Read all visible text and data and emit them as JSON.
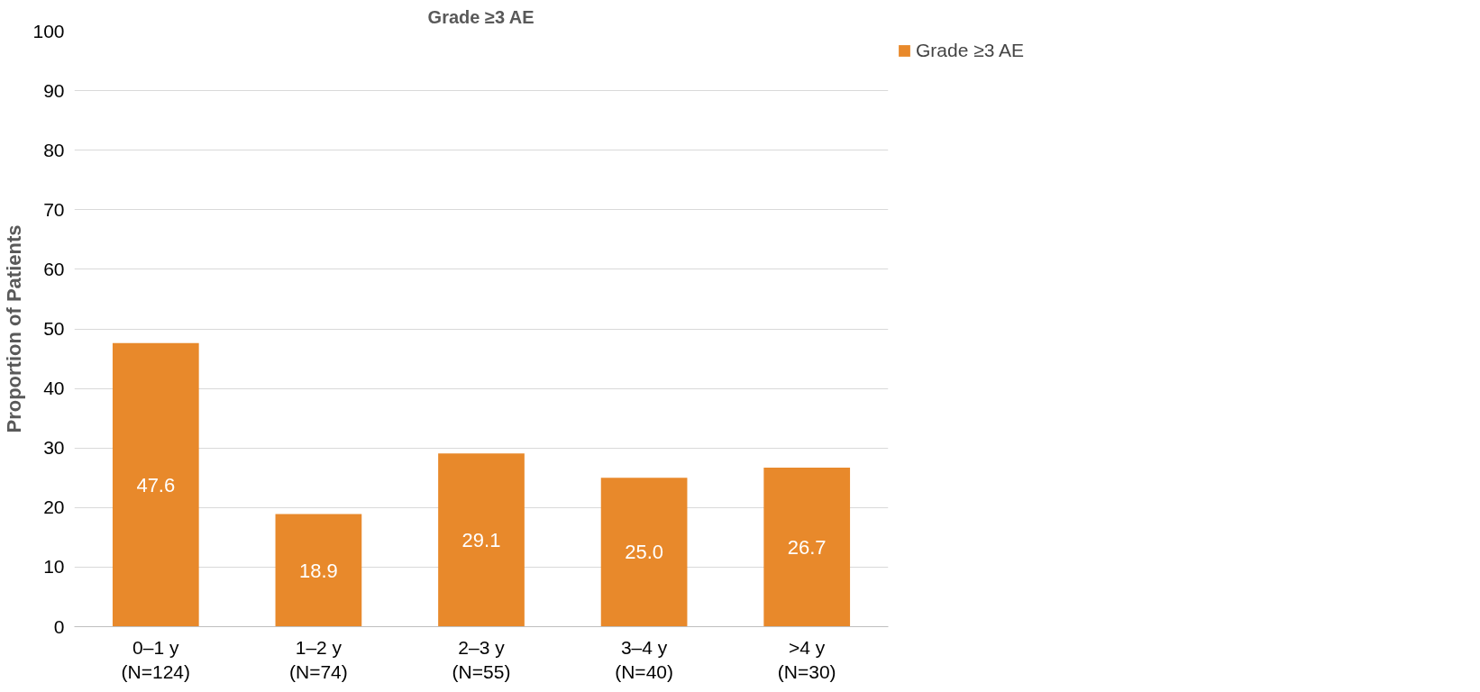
{
  "chart_data": {
    "type": "bar",
    "title": "Grade ≥3 AE",
    "ylabel": "Proportion of Patients",
    "categories": [
      "0–1 y\n(N=124)",
      "1–2 y\n(N=74)",
      "2–3 y\n(N=55)",
      "3–4 y\n(N=40)",
      ">4 y\n(N=30)"
    ],
    "series": [
      {
        "name": "Grade ≥3 AE",
        "color": "#e8892b",
        "values": [
          47.6,
          18.9,
          29.1,
          25.0,
          26.7
        ]
      }
    ],
    "value_labels": [
      "47.6",
      "18.9",
      "29.1",
      "25.0",
      "26.7"
    ],
    "ylim": [
      0,
      100
    ],
    "yticks": [
      0,
      10,
      20,
      30,
      40,
      50,
      60,
      70,
      80,
      90,
      100
    ],
    "grid": "y",
    "legend": "top right"
  }
}
